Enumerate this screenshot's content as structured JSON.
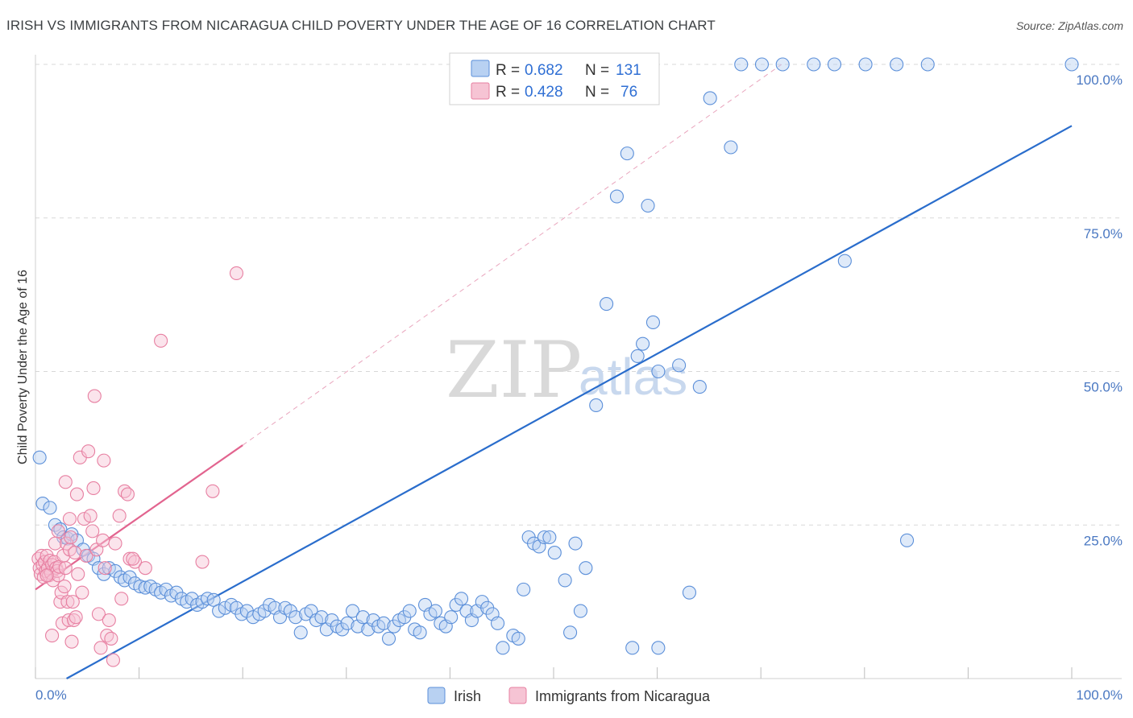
{
  "title": "IRISH VS IMMIGRANTS FROM NICARAGUA CHILD POVERTY UNDER THE AGE OF 16 CORRELATION CHART",
  "source": "Source: ZipAtlas.com",
  "watermark": {
    "zip": "ZIP",
    "atlas": "atlas"
  },
  "colors": {
    "irish": "#5b8fd9",
    "irish_fill": "#b8d1f2",
    "irish_line": "#2a6dcc",
    "nicaragua": "#e77fa1",
    "nicaragua_fill": "#f6c4d4",
    "nicaragua_line": "#e2648f",
    "grid": "#d8d8d8",
    "axis_text": "#4a78c2"
  },
  "legend": {
    "rows": [
      {
        "r_label": "R =",
        "r_value": "0.682",
        "n_label": "N =",
        "n_value": "131"
      },
      {
        "r_label": "R =",
        "r_value": "0.428",
        "n_label": "N =",
        "n_value": "76"
      }
    ]
  },
  "chart_data": {
    "type": "scatter",
    "title": "IRISH VS IMMIGRANTS FROM NICARAGUA CHILD POVERTY UNDER THE AGE OF 16 CORRELATION CHART",
    "xlabel": "",
    "ylabel": "Child Poverty Under the Age of 16",
    "xlim": [
      0,
      100
    ],
    "ylim": [
      0,
      100
    ],
    "x_tick_labels": [
      "0.0%",
      "100.0%"
    ],
    "y_ticks": [
      {
        "value": 25,
        "label": "25.0%"
      },
      {
        "value": 50,
        "label": "50.0%"
      },
      {
        "value": 75,
        "label": "75.0%"
      },
      {
        "value": 100,
        "label": "100.0%"
      }
    ],
    "series": [
      {
        "name": "Irish",
        "r": 0.682,
        "n": 131,
        "trend": {
          "x0": 3,
          "y0": 0,
          "x1": 100,
          "y1": 90
        },
        "points": [
          [
            0.4,
            36
          ],
          [
            0.7,
            28.5
          ],
          [
            1.4,
            27.8
          ],
          [
            1.9,
            25
          ],
          [
            2.4,
            24.3
          ],
          [
            2.7,
            23
          ],
          [
            3.1,
            22.8
          ],
          [
            3.5,
            23.5
          ],
          [
            4,
            22.5
          ],
          [
            4.6,
            21
          ],
          [
            5.1,
            20
          ],
          [
            5.6,
            19.5
          ],
          [
            6.1,
            18
          ],
          [
            6.6,
            17
          ],
          [
            7.1,
            18
          ],
          [
            7.7,
            17.5
          ],
          [
            8.2,
            16.5
          ],
          [
            8.6,
            16
          ],
          [
            9.1,
            16.5
          ],
          [
            9.6,
            15.5
          ],
          [
            10.1,
            15
          ],
          [
            10.6,
            14.8
          ],
          [
            11.1,
            15
          ],
          [
            11.6,
            14.5
          ],
          [
            12.1,
            14
          ],
          [
            12.6,
            14.5
          ],
          [
            13.1,
            13.5
          ],
          [
            13.6,
            14
          ],
          [
            14.1,
            13
          ],
          [
            14.6,
            12.5
          ],
          [
            15.1,
            13
          ],
          [
            15.6,
            12
          ],
          [
            16.1,
            12.5
          ],
          [
            16.6,
            13
          ],
          [
            17.2,
            12.8
          ],
          [
            17.7,
            11
          ],
          [
            18.3,
            11.5
          ],
          [
            18.9,
            12
          ],
          [
            19.4,
            11.5
          ],
          [
            19.9,
            10.5
          ],
          [
            20.4,
            11
          ],
          [
            21,
            10
          ],
          [
            21.6,
            10.5
          ],
          [
            22.1,
            11
          ],
          [
            22.6,
            12
          ],
          [
            23.1,
            11.5
          ],
          [
            23.6,
            10
          ],
          [
            24.1,
            11.5
          ],
          [
            24.6,
            11
          ],
          [
            25.1,
            10
          ],
          [
            25.6,
            7.5
          ],
          [
            26.1,
            10.5
          ],
          [
            26.6,
            11
          ],
          [
            27.1,
            9.5
          ],
          [
            27.6,
            10
          ],
          [
            28.1,
            8
          ],
          [
            28.6,
            9.5
          ],
          [
            29.1,
            8.5
          ],
          [
            29.6,
            8
          ],
          [
            30.1,
            9
          ],
          [
            30.6,
            11
          ],
          [
            31.1,
            8.5
          ],
          [
            31.6,
            10
          ],
          [
            32.1,
            8
          ],
          [
            32.6,
            9.5
          ],
          [
            33.1,
            8.5
          ],
          [
            33.6,
            9
          ],
          [
            34.1,
            6.5
          ],
          [
            34.6,
            8.5
          ],
          [
            35.1,
            9.5
          ],
          [
            35.6,
            10
          ],
          [
            36.1,
            11
          ],
          [
            36.6,
            8
          ],
          [
            37.1,
            7.5
          ],
          [
            37.6,
            12
          ],
          [
            38.1,
            10.5
          ],
          [
            38.6,
            11
          ],
          [
            39.1,
            9
          ],
          [
            39.6,
            8.5
          ],
          [
            40.1,
            10
          ],
          [
            40.6,
            12
          ],
          [
            41.1,
            13
          ],
          [
            41.6,
            11
          ],
          [
            42.1,
            9.5
          ],
          [
            42.6,
            11
          ],
          [
            43.1,
            12.5
          ],
          [
            43.6,
            11.5
          ],
          [
            44.1,
            10.5
          ],
          [
            44.6,
            9
          ],
          [
            45.1,
            5
          ],
          [
            46.1,
            7
          ],
          [
            46.6,
            6.5
          ],
          [
            47.1,
            14.5
          ],
          [
            47.6,
            23
          ],
          [
            48.1,
            22
          ],
          [
            48.6,
            21.5
          ],
          [
            49.1,
            23
          ],
          [
            49.6,
            23
          ],
          [
            50.1,
            20.5
          ],
          [
            51.1,
            16
          ],
          [
            52.1,
            22
          ],
          [
            53.1,
            18
          ],
          [
            54.1,
            44.5
          ],
          [
            55.1,
            61
          ],
          [
            56.1,
            78.5
          ],
          [
            57.1,
            85.5
          ],
          [
            57.6,
            5
          ],
          [
            59.1,
            77
          ],
          [
            60.1,
            5
          ],
          [
            63.1,
            14
          ],
          [
            64.1,
            47.5
          ],
          [
            65.1,
            94.5
          ],
          [
            67.1,
            86.5
          ],
          [
            68.1,
            100
          ],
          [
            70.1,
            100
          ],
          [
            72.1,
            100
          ],
          [
            75.1,
            100
          ],
          [
            77.1,
            100
          ],
          [
            78.1,
            68
          ],
          [
            80.1,
            100
          ],
          [
            83.1,
            100
          ],
          [
            84.1,
            22.5
          ],
          [
            86.1,
            100
          ],
          [
            100,
            100
          ],
          [
            52.6,
            11
          ],
          [
            51.6,
            7.5
          ],
          [
            58.1,
            52.5
          ],
          [
            58.6,
            54.5
          ],
          [
            59.6,
            58
          ],
          [
            60.1,
            50
          ],
          [
            62.1,
            51
          ]
        ]
      },
      {
        "name": "Immigrants from Nicaragua",
        "r": 0.428,
        "n": 76,
        "trend": {
          "x0": 0,
          "y0": 14.5,
          "x1": 20,
          "y1": 38
        },
        "trend_dashed": {
          "x0": 20,
          "y0": 38,
          "x1": 72,
          "y1": 100
        },
        "points": [
          [
            0.3,
            19.5
          ],
          [
            0.4,
            18
          ],
          [
            0.5,
            17
          ],
          [
            0.6,
            20
          ],
          [
            0.7,
            18.5
          ],
          [
            0.8,
            16.5
          ],
          [
            0.9,
            19
          ],
          [
            1,
            17.5
          ],
          [
            1.1,
            20
          ],
          [
            1.2,
            18
          ],
          [
            1.3,
            16.8
          ],
          [
            1.4,
            19.2
          ],
          [
            1.5,
            17.2
          ],
          [
            1.6,
            18.5
          ],
          [
            1.7,
            16
          ],
          [
            1.8,
            19
          ],
          [
            1.9,
            22
          ],
          [
            2,
            18
          ],
          [
            2.1,
            17.5
          ],
          [
            2.2,
            16.8
          ],
          [
            2.3,
            18.2
          ],
          [
            2.4,
            12.5
          ],
          [
            2.5,
            14
          ],
          [
            2.6,
            9
          ],
          [
            2.7,
            20
          ],
          [
            2.8,
            15
          ],
          [
            2.9,
            18
          ],
          [
            3,
            22
          ],
          [
            3.1,
            12.5
          ],
          [
            3.2,
            9.5
          ],
          [
            3.3,
            21
          ],
          [
            3.4,
            23
          ],
          [
            3.5,
            6
          ],
          [
            3.6,
            12.5
          ],
          [
            3.7,
            9.5
          ],
          [
            3.8,
            20.5
          ],
          [
            3.9,
            10
          ],
          [
            4,
            30
          ],
          [
            4.1,
            17
          ],
          [
            4.3,
            36
          ],
          [
            4.5,
            14
          ],
          [
            4.7,
            26
          ],
          [
            4.9,
            20
          ],
          [
            5.1,
            37
          ],
          [
            5.3,
            26.5
          ],
          [
            5.5,
            24
          ],
          [
            5.7,
            46
          ],
          [
            5.9,
            21
          ],
          [
            6.1,
            10.5
          ],
          [
            6.3,
            5
          ],
          [
            6.5,
            22.5
          ],
          [
            6.7,
            18
          ],
          [
            6.9,
            7
          ],
          [
            7.1,
            9.5
          ],
          [
            7.3,
            6.5
          ],
          [
            7.5,
            3
          ],
          [
            7.7,
            22
          ],
          [
            8.1,
            26.5
          ],
          [
            8.3,
            13
          ],
          [
            8.6,
            30.5
          ],
          [
            9.1,
            19.5
          ],
          [
            9.6,
            19
          ],
          [
            10.6,
            18
          ],
          [
            12.1,
            55
          ],
          [
            16.1,
            19
          ],
          [
            17.1,
            30.5
          ],
          [
            19.4,
            66
          ],
          [
            1.6,
            7
          ],
          [
            2.9,
            32
          ],
          [
            3.3,
            26
          ],
          [
            5.6,
            31
          ],
          [
            6.6,
            35.5
          ],
          [
            8.9,
            30
          ],
          [
            9.4,
            19.5
          ],
          [
            2.2,
            24
          ],
          [
            1.1,
            16.8
          ]
        ]
      }
    ]
  }
}
